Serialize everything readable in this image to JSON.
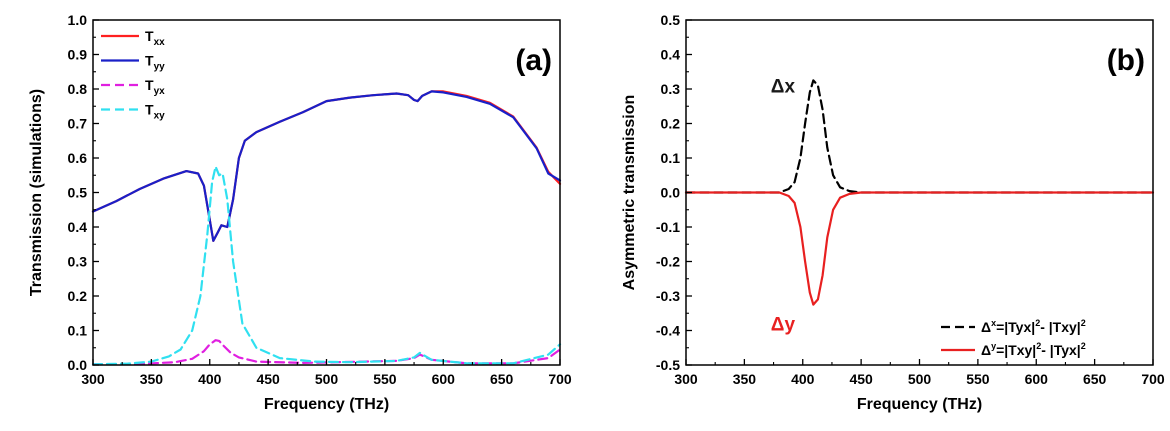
{
  "chart_data": [
    {
      "panel": "(a)",
      "type": "line",
      "xlabel": "Frequency (THz)",
      "ylabel": "Transmission (simulations)",
      "xlim": [
        300,
        700
      ],
      "ylim": [
        0.0,
        1.0
      ],
      "xticks": [
        "300",
        "350",
        "400",
        "450",
        "500",
        "550",
        "600",
        "650",
        "700"
      ],
      "yticks": [
        "0.0",
        "0.1",
        "0.2",
        "0.3",
        "0.4",
        "0.5",
        "0.6",
        "0.7",
        "0.8",
        "0.9",
        "1.0"
      ],
      "legend_position": "top-left",
      "series": [
        {
          "name": "T",
          "sub": "xx",
          "color": "#ff2020",
          "dash": "solid",
          "x": [
            300,
            320,
            340,
            360,
            380,
            390,
            395,
            400,
            403,
            407,
            410,
            415,
            420,
            425,
            430,
            440,
            460,
            480,
            500,
            520,
            540,
            560,
            570,
            575,
            578,
            582,
            590,
            600,
            620,
            640,
            660,
            680,
            690,
            700
          ],
          "y": [
            0.445,
            0.475,
            0.51,
            0.54,
            0.562,
            0.555,
            0.52,
            0.42,
            0.36,
            0.385,
            0.405,
            0.4,
            0.48,
            0.6,
            0.65,
            0.675,
            0.705,
            0.733,
            0.765,
            0.775,
            0.782,
            0.787,
            0.782,
            0.768,
            0.765,
            0.78,
            0.793,
            0.793,
            0.78,
            0.76,
            0.72,
            0.63,
            0.56,
            0.525
          ]
        },
        {
          "name": "T",
          "sub": "yy",
          "color": "#1a20c8",
          "dash": "solid",
          "x": [
            300,
            320,
            340,
            360,
            380,
            390,
            395,
            400,
            403,
            407,
            410,
            415,
            420,
            425,
            430,
            440,
            460,
            480,
            500,
            520,
            540,
            560,
            570,
            575,
            578,
            582,
            590,
            600,
            620,
            640,
            660,
            680,
            690,
            700
          ],
          "y": [
            0.445,
            0.475,
            0.51,
            0.54,
            0.562,
            0.555,
            0.52,
            0.42,
            0.36,
            0.385,
            0.405,
            0.4,
            0.48,
            0.6,
            0.65,
            0.675,
            0.705,
            0.733,
            0.765,
            0.775,
            0.782,
            0.787,
            0.782,
            0.768,
            0.765,
            0.78,
            0.793,
            0.79,
            0.777,
            0.757,
            0.718,
            0.628,
            0.555,
            0.535
          ]
        },
        {
          "name": "T",
          "sub": "yx",
          "color": "#e020e0",
          "dash": "dashed",
          "x": [
            300,
            340,
            370,
            385,
            395,
            400,
            405,
            408,
            412,
            418,
            425,
            440,
            480,
            560,
            575,
            580,
            590,
            620,
            660,
            690,
            700
          ],
          "y": [
            0.002,
            0.003,
            0.008,
            0.018,
            0.04,
            0.06,
            0.072,
            0.07,
            0.055,
            0.035,
            0.022,
            0.01,
            0.006,
            0.012,
            0.02,
            0.03,
            0.015,
            0.005,
            0.005,
            0.02,
            0.045
          ]
        },
        {
          "name": "T",
          "sub": "xy",
          "color": "#30e0f0",
          "dash": "dashed",
          "x": [
            300,
            330,
            350,
            365,
            375,
            385,
            392,
            398,
            402,
            405,
            408,
            411,
            415,
            420,
            428,
            440,
            460,
            490,
            520,
            560,
            575,
            580,
            590,
            620,
            660,
            690,
            700
          ],
          "y": [
            0.002,
            0.004,
            0.01,
            0.025,
            0.045,
            0.1,
            0.2,
            0.38,
            0.53,
            0.575,
            0.55,
            0.555,
            0.48,
            0.3,
            0.12,
            0.05,
            0.02,
            0.01,
            0.008,
            0.012,
            0.022,
            0.035,
            0.015,
            0.005,
            0.005,
            0.03,
            0.06
          ]
        }
      ]
    },
    {
      "panel": "(b)",
      "type": "line",
      "xlabel": "Frequency (THz)",
      "ylabel": "Asymmetric transmission",
      "xlim": [
        300,
        700
      ],
      "ylim": [
        -0.5,
        0.5
      ],
      "xticks": [
        "300",
        "350",
        "400",
        "450",
        "500",
        "550",
        "600",
        "650",
        "700"
      ],
      "yticks": [
        "-0.5",
        "-0.4",
        "-0.3",
        "-0.2",
        "-0.1",
        "0.0",
        "0.1",
        "0.2",
        "0.3",
        "0.4",
        "0.5"
      ],
      "legend_position": "bottom-right",
      "annotations": [
        {
          "text": "Δx",
          "color": "#1a1a1a",
          "x": 383,
          "y": 0.29
        },
        {
          "text": "Δy",
          "color": "#e82020",
          "x": 383,
          "y": -0.4
        }
      ],
      "series": [
        {
          "label": {
            "lead": "Δ",
            "sup1": "x",
            "mid": "=|Tyx|",
            "sup2": "2",
            "tail": "- |Txy|",
            "sup3": "2"
          },
          "color": "#000000",
          "dash": "dashed",
          "x": [
            300,
            380,
            388,
            393,
            398,
            402,
            406,
            409,
            413,
            417,
            421,
            426,
            432,
            440,
            450,
            500,
            600,
            700
          ],
          "y": [
            0.0,
            0.0,
            0.01,
            0.03,
            0.1,
            0.2,
            0.29,
            0.325,
            0.31,
            0.24,
            0.13,
            0.05,
            0.015,
            0.004,
            0.0,
            0.0,
            0.0,
            0.0
          ]
        },
        {
          "label": {
            "lead": "Δ",
            "sup1": "y",
            "mid": "=|Txy|",
            "sup2": "2",
            "tail": "- |Tyx|",
            "sup3": "2"
          },
          "color": "#e82020",
          "dash": "solid",
          "x": [
            300,
            380,
            388,
            393,
            398,
            402,
            406,
            409,
            413,
            417,
            421,
            426,
            432,
            440,
            450,
            500,
            600,
            700
          ],
          "y": [
            0.0,
            0.0,
            -0.01,
            -0.03,
            -0.1,
            -0.2,
            -0.29,
            -0.325,
            -0.31,
            -0.24,
            -0.13,
            -0.05,
            -0.015,
            -0.004,
            0.0,
            0.0,
            0.0,
            0.0
          ]
        }
      ]
    }
  ]
}
